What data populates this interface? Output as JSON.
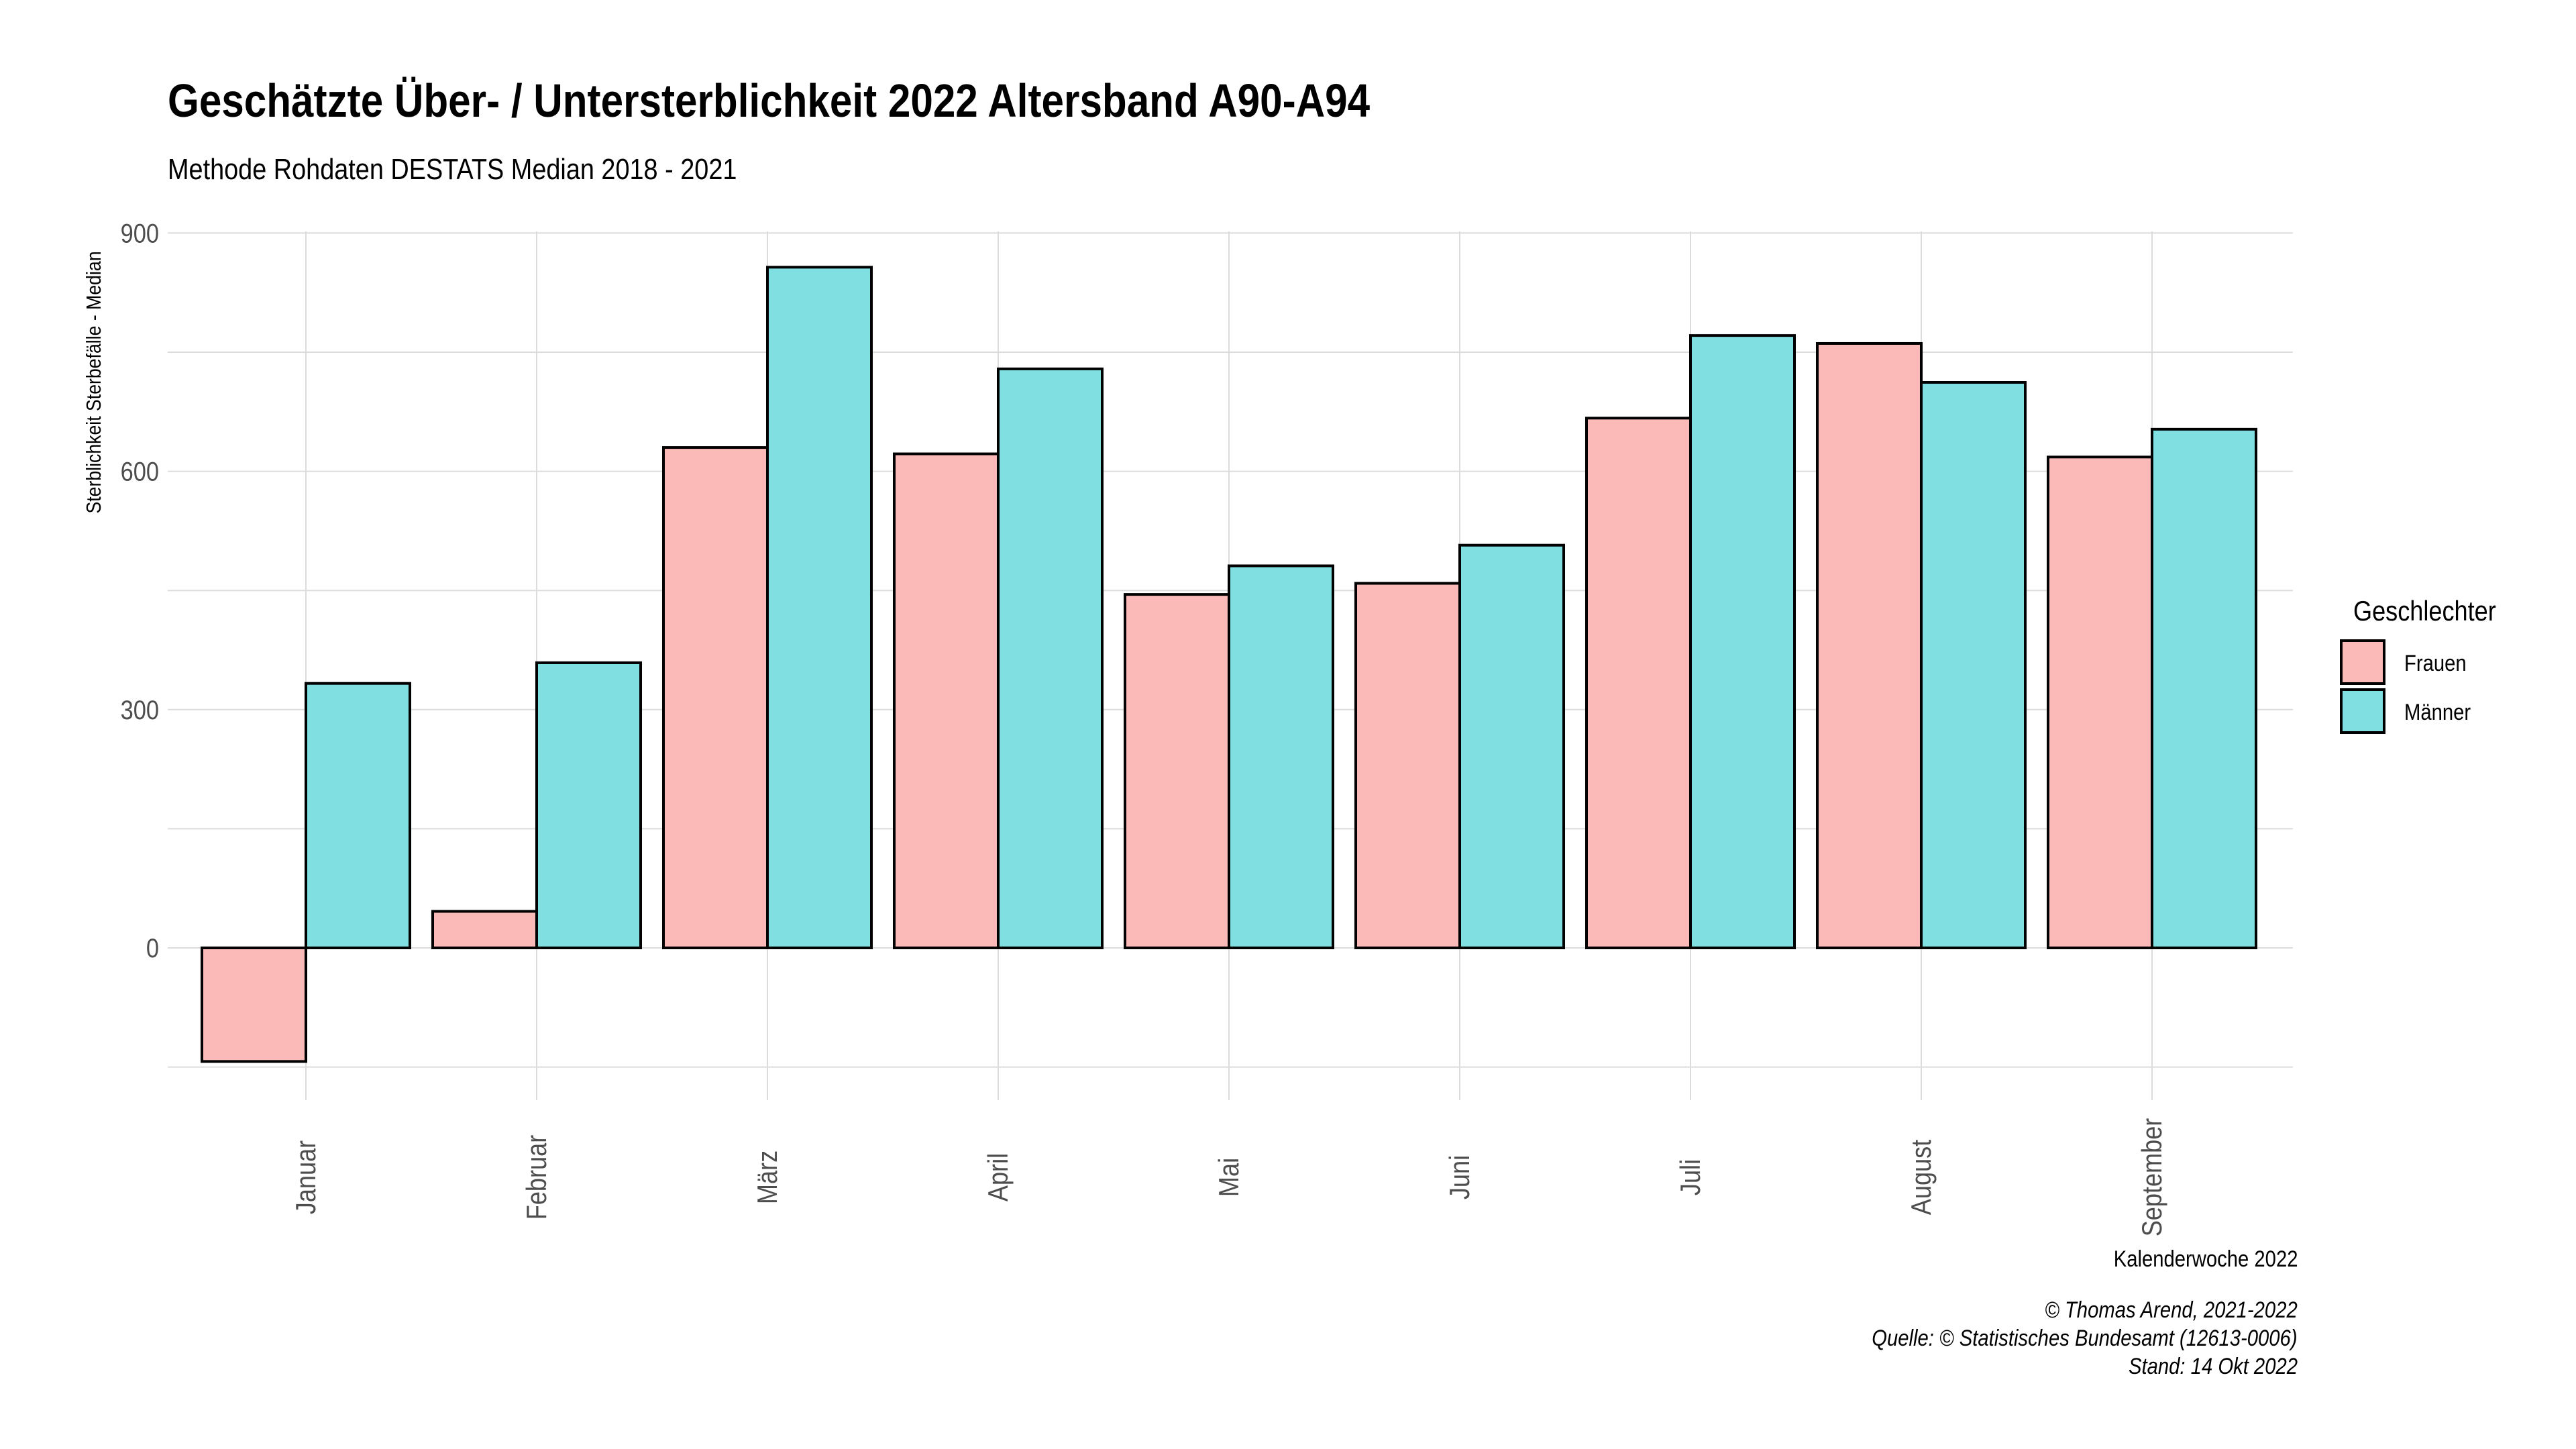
{
  "chart_data": {
    "type": "bar",
    "title": "Geschätzte Über- / Untersterblichkeit 2022 Altersband A90-A94",
    "subtitle": "Methode Rohdaten DESTATS Median 2018 - 2021",
    "xlabel": "Kalenderwoche 2022",
    "ylabel": "Sterblichkeit Sterbefälle - Median",
    "categories": [
      "Januar",
      "Februar",
      "März",
      "April",
      "Mai",
      "Juni",
      "Juli",
      "August",
      "September"
    ],
    "series": [
      {
        "name": "Frauen",
        "color": "#fbb9b7",
        "values": [
          -143,
          46,
          630,
          622,
          445,
          459,
          667,
          761,
          618
        ]
      },
      {
        "name": "Männer",
        "color": "#80dfe0",
        "values": [
          333,
          359,
          857,
          729,
          481,
          507,
          771,
          712,
          653
        ]
      }
    ],
    "ylim": [
      -150,
      900
    ],
    "yticks": [
      0,
      300,
      600,
      900
    ],
    "grid": true,
    "legend": {
      "title": "Geschlechter",
      "position": "right"
    },
    "caption": [
      "© Thomas Arend, 2021-2022",
      "Quelle: © Statistisches Bundesamt (12613-0006)",
      "Stand: 14 Okt 2022"
    ]
  }
}
